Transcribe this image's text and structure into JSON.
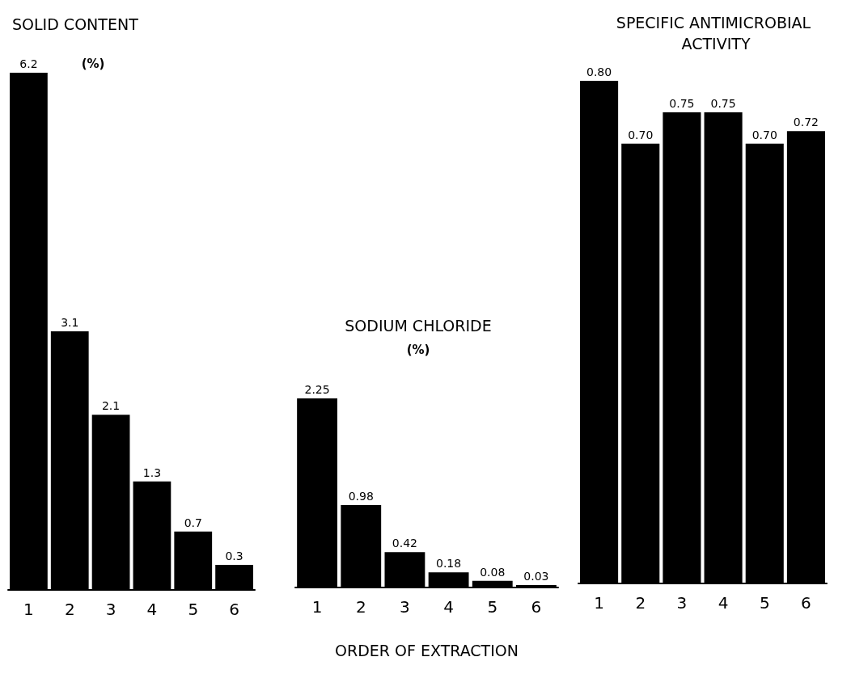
{
  "chart_data": [
    {
      "type": "bar",
      "title": "SOLID CONTENT",
      "subtitle": "(%)",
      "categories": [
        "1",
        "2",
        "3",
        "4",
        "5",
        "6"
      ],
      "values": [
        6.2,
        3.1,
        2.1,
        1.3,
        0.7,
        0.3
      ],
      "color": "#000000",
      "data_labels": true,
      "grid": false
    },
    {
      "type": "bar",
      "title": "SODIUM CHLORIDE",
      "subtitle": "(%)",
      "xlabel": "ORDER OF EXTRACTION",
      "categories": [
        "1",
        "2",
        "3",
        "4",
        "5",
        "6"
      ],
      "values": [
        2.25,
        0.98,
        0.42,
        0.18,
        0.08,
        0.03
      ],
      "color": "#000000",
      "data_labels": true,
      "grid": false
    },
    {
      "type": "bar",
      "title": "SPECIFIC ANTIMICROBIAL ACTIVITY",
      "categories": [
        "1",
        "2",
        "3",
        "4",
        "5",
        "6"
      ],
      "values": [
        0.8,
        0.7,
        0.75,
        0.75,
        0.7,
        0.72
      ],
      "value_labels": [
        "0.80",
        "0.70",
        "0.75",
        "0.75",
        "0.70",
        "0.72"
      ],
      "color": "#000000",
      "grid": false
    }
  ]
}
